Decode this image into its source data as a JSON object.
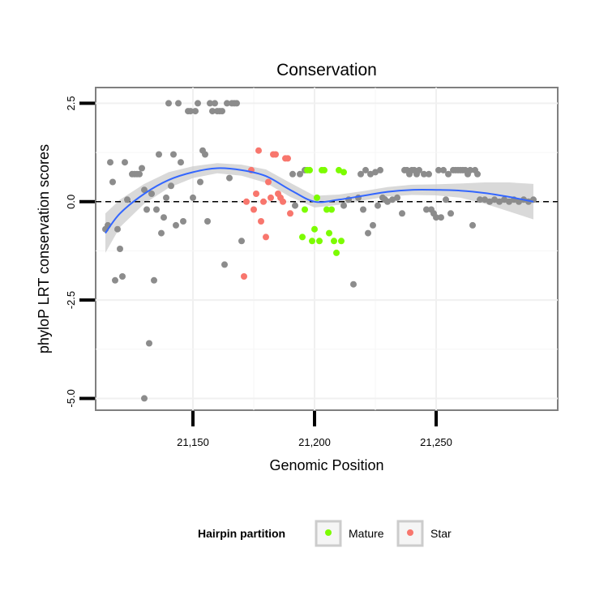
{
  "chart_data": {
    "type": "scatter",
    "title": "Conservation",
    "xlabel": "Genomic Position",
    "ylabel": "phyloP LRT conservation scores",
    "xlim": [
      21110,
      21300
    ],
    "ylim": [
      -5.3,
      2.9
    ],
    "x_ticks": [
      {
        "value": 21150,
        "label": "21,150"
      },
      {
        "value": 21200,
        "label": "21,200"
      },
      {
        "value": 21250,
        "label": "21,250"
      }
    ],
    "y_ticks": [
      {
        "value": 2.5,
        "label": "2.5"
      },
      {
        "value": 0.0,
        "label": "0.0"
      },
      {
        "value": -2.5,
        "label": "-2.5"
      },
      {
        "value": -5.0,
        "label": "-5.0"
      }
    ],
    "reference_line": {
      "y": 0,
      "style": "dashed"
    },
    "legend": {
      "title": "Hairpin partition",
      "position": "bottom",
      "items": [
        {
          "label": "Mature",
          "color": "#7CFC00"
        },
        {
          "label": "Star",
          "color": "#F8766D"
        }
      ]
    },
    "colors": {
      "other": "#8c8c8c",
      "mature": "#7CFC00",
      "star": "#F8766D",
      "smooth": "#3366FF",
      "ribbon": "#cccccc"
    },
    "series": [
      {
        "name": "Other",
        "points": [
          [
            21114,
            -0.7
          ],
          [
            21115,
            -0.6
          ],
          [
            21116,
            1.0
          ],
          [
            21117,
            0.5
          ],
          [
            21118,
            -2.0
          ],
          [
            21119,
            -0.7
          ],
          [
            21120,
            -1.2
          ],
          [
            21121,
            -1.9
          ],
          [
            21122,
            1.0
          ],
          [
            21123,
            0.05
          ],
          [
            21125,
            0.7
          ],
          [
            21126,
            0.7
          ],
          [
            21127,
            0.7
          ],
          [
            21128,
            0.7
          ],
          [
            21129,
            0.85
          ],
          [
            21130,
            0.3
          ],
          [
            21131,
            -0.2
          ],
          [
            21132,
            -3.6
          ],
          [
            21133,
            0.2
          ],
          [
            21134,
            -2.0
          ],
          [
            21135,
            -0.2
          ],
          [
            21136,
            1.2
          ],
          [
            21137,
            -0.8
          ],
          [
            21138,
            -0.4
          ],
          [
            21139,
            0.1
          ],
          [
            21140,
            2.5
          ],
          [
            21141,
            0.4
          ],
          [
            21142,
            1.2
          ],
          [
            21143,
            -0.6
          ],
          [
            21144,
            2.5
          ],
          [
            21145,
            1.0
          ],
          [
            21146,
            -0.5
          ],
          [
            21148,
            2.3
          ],
          [
            21149,
            2.3
          ],
          [
            21150,
            0.1
          ],
          [
            21151,
            2.3
          ],
          [
            21152,
            2.5
          ],
          [
            21153,
            0.5
          ],
          [
            21154,
            1.3
          ],
          [
            21155,
            1.2
          ],
          [
            21156,
            -0.5
          ],
          [
            21157,
            2.5
          ],
          [
            21158,
            2.3
          ],
          [
            21159,
            2.5
          ],
          [
            21160,
            2.3
          ],
          [
            21161,
            2.3
          ],
          [
            21162,
            2.3
          ],
          [
            21163,
            -1.6
          ],
          [
            21164,
            2.5
          ],
          [
            21165,
            0.6
          ],
          [
            21166,
            2.5
          ],
          [
            21167,
            2.5
          ],
          [
            21168,
            2.5
          ],
          [
            21170,
            -1.0
          ],
          [
            21130,
            -5.0
          ],
          [
            21191,
            0.7
          ],
          [
            21192,
            -0.1
          ],
          [
            21194,
            0.7
          ],
          [
            21196,
            0.8
          ],
          [
            21212,
            -0.1
          ],
          [
            21214,
            0.05
          ],
          [
            21216,
            -2.1
          ],
          [
            21218,
            0.1
          ],
          [
            21219,
            0.7
          ],
          [
            21220,
            -0.2
          ],
          [
            21221,
            0.8
          ],
          [
            21222,
            -0.8
          ],
          [
            21223,
            0.7
          ],
          [
            21224,
            -0.6
          ],
          [
            21225,
            0.75
          ],
          [
            21226,
            -0.1
          ],
          [
            21227,
            0.8
          ],
          [
            21228,
            0.1
          ],
          [
            21229,
            0.05
          ],
          [
            21230,
            0.0
          ],
          [
            21232,
            0.05
          ],
          [
            21234,
            0.1
          ],
          [
            21236,
            -0.3
          ],
          [
            21237,
            0.8
          ],
          [
            21238,
            0.8
          ],
          [
            21239,
            0.7
          ],
          [
            21240,
            0.8
          ],
          [
            21241,
            0.8
          ],
          [
            21242,
            0.7
          ],
          [
            21243,
            0.8
          ],
          [
            21245,
            0.7
          ],
          [
            21246,
            -0.2
          ],
          [
            21247,
            0.7
          ],
          [
            21248,
            -0.2
          ],
          [
            21249,
            -0.3
          ],
          [
            21250,
            -0.4
          ],
          [
            21251,
            0.8
          ],
          [
            21252,
            -0.4
          ],
          [
            21253,
            0.8
          ],
          [
            21254,
            0.05
          ],
          [
            21255,
            0.7
          ],
          [
            21256,
            -0.3
          ],
          [
            21257,
            0.8
          ],
          [
            21258,
            0.8
          ],
          [
            21259,
            0.8
          ],
          [
            21260,
            0.8
          ],
          [
            21261,
            0.8
          ],
          [
            21262,
            0.8
          ],
          [
            21263,
            0.7
          ],
          [
            21264,
            0.8
          ],
          [
            21265,
            -0.6
          ],
          [
            21266,
            0.8
          ],
          [
            21267,
            0.7
          ],
          [
            21268,
            0.05
          ],
          [
            21270,
            0.05
          ],
          [
            21272,
            0.0
          ],
          [
            21274,
            0.05
          ],
          [
            21276,
            0.0
          ],
          [
            21278,
            0.05
          ],
          [
            21280,
            0.0
          ],
          [
            21282,
            0.05
          ],
          [
            21284,
            0.0
          ],
          [
            21286,
            0.05
          ],
          [
            21288,
            0.0
          ],
          [
            21290,
            0.05
          ]
        ]
      },
      {
        "name": "Mature",
        "points": [
          [
            21195,
            -0.9
          ],
          [
            21196,
            -0.2
          ],
          [
            21197,
            0.8
          ],
          [
            21198,
            0.8
          ],
          [
            21199,
            -1.0
          ],
          [
            21200,
            -0.7
          ],
          [
            21201,
            0.1
          ],
          [
            21202,
            -1.0
          ],
          [
            21203,
            0.8
          ],
          [
            21204,
            0.8
          ],
          [
            21205,
            -0.2
          ],
          [
            21206,
            -0.8
          ],
          [
            21207,
            -0.2
          ],
          [
            21208,
            -1.0
          ],
          [
            21209,
            -1.3
          ],
          [
            21210,
            0.8
          ],
          [
            21211,
            -1.0
          ],
          [
            21212,
            0.75
          ]
        ]
      },
      {
        "name": "Star",
        "points": [
          [
            21171,
            -1.9
          ],
          [
            21172,
            0.0
          ],
          [
            21174,
            0.8
          ],
          [
            21175,
            -0.2
          ],
          [
            21176,
            0.2
          ],
          [
            21177,
            1.3
          ],
          [
            21178,
            -0.5
          ],
          [
            21179,
            0.0
          ],
          [
            21180,
            -0.9
          ],
          [
            21181,
            0.5
          ],
          [
            21182,
            0.1
          ],
          [
            21183,
            1.2
          ],
          [
            21184,
            1.2
          ],
          [
            21185,
            0.2
          ],
          [
            21186,
            0.1
          ],
          [
            21187,
            0.0
          ],
          [
            21188,
            1.1
          ],
          [
            21189,
            1.1
          ],
          [
            21190,
            -0.3
          ]
        ]
      }
    ],
    "smooth_line": {
      "x": [
        21114,
        21120,
        21130,
        21140,
        21150,
        21160,
        21170,
        21180,
        21190,
        21200,
        21210,
        21220,
        21230,
        21240,
        21250,
        21260,
        21270,
        21280,
        21290
      ],
      "y": [
        -0.8,
        -0.3,
        0.2,
        0.55,
        0.75,
        0.85,
        0.8,
        0.65,
        0.3,
        0.0,
        0.05,
        0.15,
        0.25,
        0.3,
        0.3,
        0.28,
        0.22,
        0.12,
        0.0
      ],
      "lower": [
        -1.3,
        -0.65,
        -0.05,
        0.35,
        0.6,
        0.72,
        0.66,
        0.48,
        0.12,
        -0.15,
        -0.08,
        0.03,
        0.13,
        0.17,
        0.16,
        0.1,
        -0.05,
        -0.25,
        -0.45
      ],
      "upper": [
        -0.3,
        0.05,
        0.45,
        0.75,
        0.9,
        0.98,
        0.94,
        0.82,
        0.48,
        0.15,
        0.18,
        0.27,
        0.37,
        0.43,
        0.44,
        0.46,
        0.49,
        0.49,
        0.45
      ]
    }
  }
}
